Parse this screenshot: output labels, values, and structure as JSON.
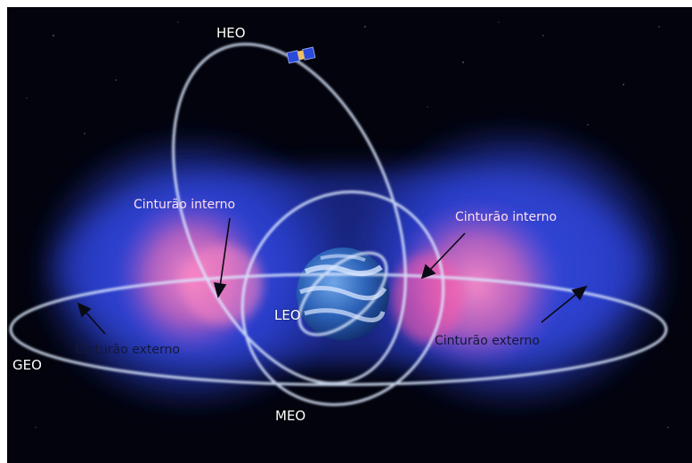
{
  "labels": {
    "heo": "HEO",
    "leo": "LEO",
    "meo": "MEO",
    "geo": "GEO",
    "inner_belt_left": "Cinturão interno",
    "inner_belt_right": "Cinturão interno",
    "outer_belt_left": "Cinturão externo",
    "outer_belt_right": "Cinturão externo"
  },
  "colors": {
    "space": "#02030c",
    "outer_belt": "#2a3fd6",
    "inner_belt": "#ff6fb4",
    "orbit": "#dce8ff",
    "earth_ocean": "#2d63b8",
    "earth_cloud": "#d8e6ff",
    "arrow": "#0a0a14"
  },
  "icons": {
    "satellite": "satellite-icon",
    "earth": "earth-icon"
  }
}
